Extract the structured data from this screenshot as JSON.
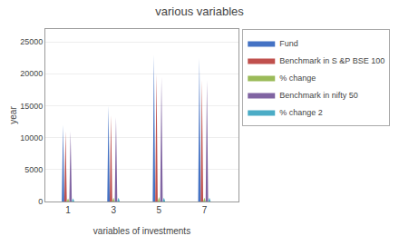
{
  "chart_data": {
    "type": "bar",
    "marker": "triangle",
    "title": "various variables",
    "xlabel": "variables of investments",
    "ylabel": "year",
    "x": [
      1,
      3,
      5,
      7
    ],
    "series": [
      {
        "name": "Fund",
        "color": "#4472C4",
        "values": [
          12000,
          15000,
          23000,
          22500
        ]
      },
      {
        "name": "Benchmark in S &P BSE 100",
        "color": "#C0504D",
        "values": [
          11000,
          13500,
          20000,
          19000
        ]
      },
      {
        "name": "% change",
        "color": "#9BBB59",
        "values": [
          500,
          600,
          700,
          600
        ]
      },
      {
        "name": "Benchmark in nifty 50",
        "color": "#8064A2",
        "values": [
          11000,
          13200,
          19500,
          19000
        ]
      },
      {
        "name": "% change 2",
        "color": "#4BACC6",
        "values": [
          500,
          600,
          600,
          600
        ]
      }
    ],
    "xlim": [
      0,
      8.5
    ],
    "xticks": [
      1,
      3,
      5,
      7
    ],
    "ylim": [
      0,
      27000
    ],
    "yticks": [
      0,
      5000,
      10000,
      15000,
      20000,
      25000
    ],
    "grid": true,
    "legend": "right"
  }
}
